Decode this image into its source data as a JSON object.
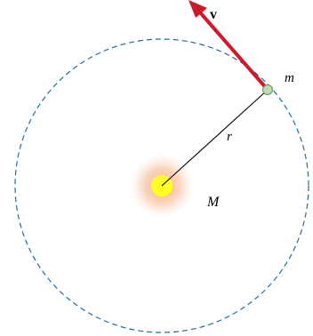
{
  "labels": {
    "velocity": "v",
    "orbiting_mass": "m",
    "radius": "r",
    "central_mass": "M"
  },
  "colors": {
    "orbit": "#2a6b95",
    "velocity_arrow": "#cc1a2b",
    "radius_line": "#000000",
    "star_core": "#ffff22",
    "star_glow": "#f08c52",
    "planet_fill": "#b9dcaa",
    "planet_stroke": "#6a8c66"
  },
  "icons": {
    "star": "star-icon",
    "planet": "planet-icon"
  }
}
